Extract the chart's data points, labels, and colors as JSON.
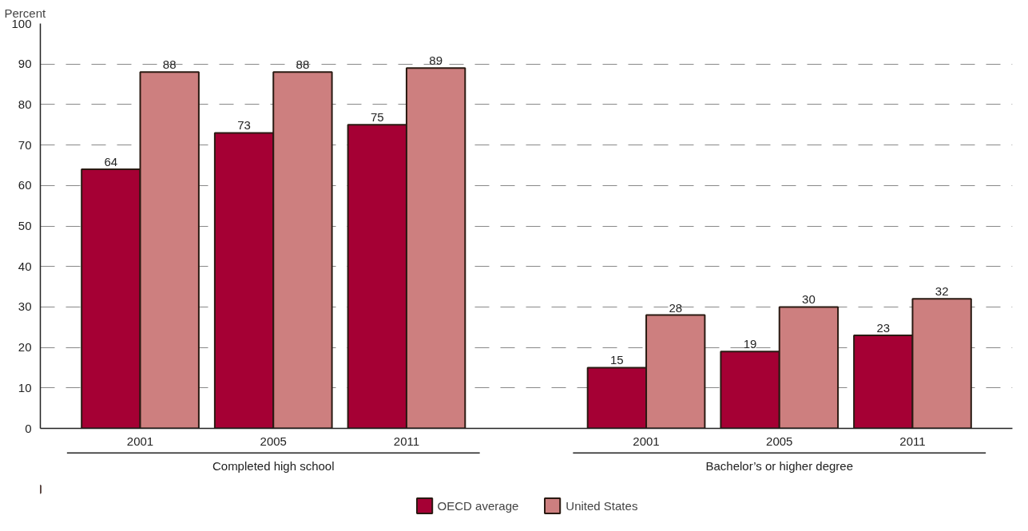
{
  "chart_data": {
    "type": "bar",
    "ylabel": "Percent",
    "categories": [
      "2001",
      "2005",
      "2011",
      "2001",
      "2005",
      "2011"
    ],
    "series": [
      {
        "name": "OECD average",
        "color": "#a50034",
        "values": [
          64,
          73,
          75,
          15,
          19,
          23
        ]
      },
      {
        "name": "United States",
        "color": "#cd7f7f",
        "values": [
          88,
          88,
          89,
          28,
          30,
          32
        ]
      }
    ],
    "annotations": [
      "Completed high school",
      "Bachelor’s or higher degree"
    ],
    "ylim": [
      0,
      100
    ],
    "yticks": [
      0,
      10,
      20,
      30,
      40,
      50,
      60,
      70,
      80,
      90,
      100
    ],
    "grid": "y",
    "legend": "bottom",
    "data_labels": true
  }
}
